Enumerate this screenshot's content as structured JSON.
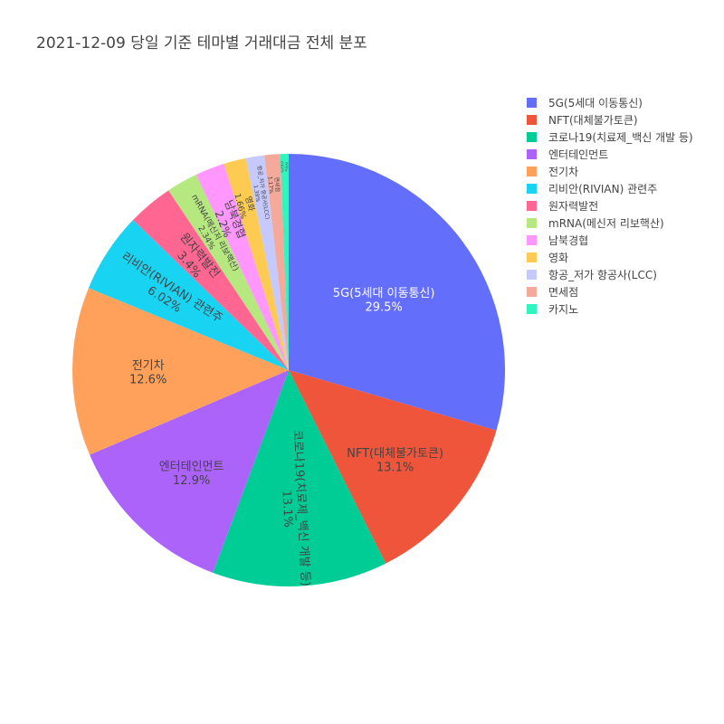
{
  "chart_data": {
    "type": "pie",
    "title": "2021-12-09 당일 기준 테마별 거래대금 전체 분포",
    "direction": "clockwise",
    "start": "12 o'clock",
    "legend_position": "right",
    "slices": [
      {
        "label": "5G(5세대 이동통신)",
        "value": 29.5,
        "text": "29.5%",
        "color": "#636efa",
        "text_color": "#ffffff"
      },
      {
        "label": "NFT(대체불가토큰)",
        "value": 13.1,
        "text": "13.1%",
        "color": "#ef553b",
        "text_color": "#444444"
      },
      {
        "label": "코로나19(치료제_백신 개발 등)",
        "value": 13.1,
        "text": "13.1%",
        "color": "#00cc96",
        "text_color": "#444444"
      },
      {
        "label": "엔터테인먼트",
        "value": 12.9,
        "text": "12.9%",
        "color": "#ab63fa",
        "text_color": "#444444"
      },
      {
        "label": "전기차",
        "value": 12.6,
        "text": "12.6%",
        "color": "#ffa15a",
        "text_color": "#444444"
      },
      {
        "label": "리비안(RIVIAN) 관련주",
        "value": 6.02,
        "text": "6.02%",
        "color": "#19d3f3",
        "text_color": "#444444"
      },
      {
        "label": "원자력발전",
        "value": 3.4,
        "text": "3.4%",
        "color": "#ff6692",
        "text_color": "#444444"
      },
      {
        "label": "mRNA(메신저 리보핵산)",
        "value": 2.34,
        "text": "2.34%",
        "color": "#b6e880",
        "text_color": "#444444"
      },
      {
        "label": "남북경협",
        "value": 2.2,
        "text": "2.2%",
        "color": "#ff97ff",
        "text_color": "#444444"
      },
      {
        "label": "영화",
        "value": 1.66,
        "text": "1.66%",
        "color": "#fecb52",
        "text_color": "#444444"
      },
      {
        "label": "항공_저가 항공사(LCC)",
        "value": 1.39,
        "text": "1.39%",
        "color": "#c6c9fc",
        "text_color": "#444444"
      },
      {
        "label": "면세점",
        "value": 1.17,
        "text": "1.17%",
        "color": "#f4a99b",
        "text_color": "#444444"
      },
      {
        "label": "카지노",
        "value": 0.62,
        "text": "0.62%",
        "color": "#2ff5c0",
        "text_color": "#444444"
      }
    ]
  }
}
